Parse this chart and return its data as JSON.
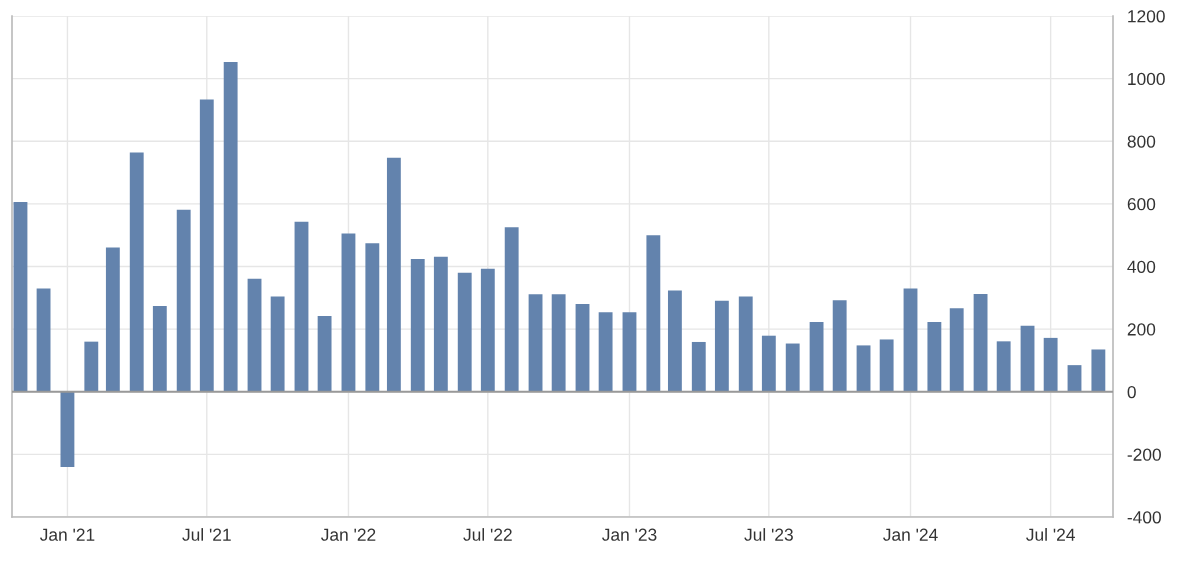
{
  "chart_data": {
    "type": "bar",
    "x": [
      "2020-11",
      "2020-12",
      "2021-01",
      "2021-02",
      "2021-03",
      "2021-04",
      "2021-05",
      "2021-06",
      "2021-07",
      "2021-08",
      "2021-09",
      "2021-10",
      "2021-11",
      "2021-12",
      "2022-01",
      "2022-02",
      "2022-03",
      "2022-04",
      "2022-05",
      "2022-06",
      "2022-07",
      "2022-08",
      "2022-09",
      "2022-10",
      "2022-11",
      "2022-12",
      "2023-01",
      "2023-02",
      "2023-03",
      "2023-04",
      "2023-05",
      "2023-06",
      "2023-07",
      "2023-08",
      "2023-09",
      "2023-10",
      "2023-11",
      "2023-12",
      "2024-01",
      "2024-02",
      "2024-03",
      "2024-04",
      "2024-05",
      "2024-06",
      "2024-07",
      "2024-08",
      "2024-09"
    ],
    "values": [
      606,
      330,
      -240,
      160,
      461,
      764,
      274,
      581,
      933,
      1053,
      361,
      304,
      543,
      242,
      505,
      474,
      747,
      424,
      431,
      380,
      393,
      525,
      311,
      311,
      280,
      254,
      254,
      500,
      323,
      159,
      291,
      304,
      179,
      154,
      223,
      292,
      148,
      167,
      330,
      223,
      267,
      312,
      161,
      211,
      172,
      85,
      135
    ],
    "color": "#6383ad",
    "xlim": [
      "2020-10-21",
      "2024-09-20"
    ],
    "xticks": [
      {
        "value": "2021-01-01",
        "label": "Jan '21"
      },
      {
        "value": "2021-07-01",
        "label": "Jul '21"
      },
      {
        "value": "2022-01-01",
        "label": "Jan '22"
      },
      {
        "value": "2022-07-01",
        "label": "Jul '22"
      },
      {
        "value": "2023-01-01",
        "label": "Jan '23"
      },
      {
        "value": "2023-07-01",
        "label": "Jul '23"
      },
      {
        "value": "2024-01-01",
        "label": "Jan '24"
      },
      {
        "value": "2024-07-01",
        "label": "Jul '24"
      }
    ],
    "ylim": [
      -400,
      1200
    ],
    "yticks": [
      -400,
      -200,
      0,
      200,
      400,
      600,
      800,
      1000,
      1200
    ],
    "ref_lines": [
      {
        "axis": "y",
        "value": 0,
        "label": null,
        "color": "#999999"
      }
    ],
    "grid": true
  }
}
